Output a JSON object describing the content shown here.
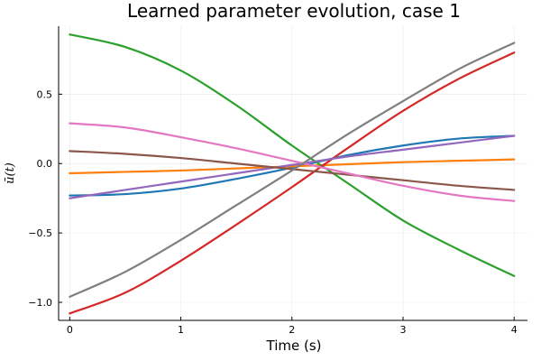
{
  "chart_data": {
    "type": "line",
    "title": "Learned parameter evolution, case 1",
    "xlabel": "Time (s)",
    "ylabel": "ū(t)",
    "xlim": [
      -0.1,
      4.12
    ],
    "ylim": [
      -1.13,
      0.99
    ],
    "x_ticks": [
      0,
      1,
      2,
      3,
      4
    ],
    "x_tick_labels": [
      "0",
      "1",
      "2",
      "3",
      "4"
    ],
    "y_ticks": [
      -1.0,
      -0.5,
      0.0,
      0.5
    ],
    "y_tick_labels": [
      "−1.0",
      "−0.5",
      "0.0",
      "0.5"
    ],
    "grid": true,
    "legend": "none",
    "x": [
      0,
      0.5,
      1,
      1.5,
      2,
      2.5,
      3,
      3.5,
      4
    ],
    "series": [
      {
        "color": "#1f77b4",
        "values": [
          -0.23,
          -0.22,
          -0.18,
          -0.11,
          -0.03,
          0.06,
          0.13,
          0.18,
          0.2
        ]
      },
      {
        "color": "#ff7f0e",
        "values": [
          -0.07,
          -0.06,
          -0.05,
          -0.035,
          -0.02,
          -0.005,
          0.01,
          0.02,
          0.03
        ]
      },
      {
        "color": "#2ca02c",
        "values": [
          0.93,
          0.84,
          0.67,
          0.42,
          0.13,
          -0.14,
          -0.41,
          -0.62,
          -0.81
        ]
      },
      {
        "color": "#d62728",
        "values": [
          -1.08,
          -0.93,
          -0.7,
          -0.44,
          -0.17,
          0.11,
          0.38,
          0.61,
          0.8
        ]
      },
      {
        "color": "#9467bd",
        "values": [
          -0.25,
          -0.19,
          -0.13,
          -0.07,
          -0.01,
          0.05,
          0.1,
          0.15,
          0.2
        ]
      },
      {
        "color": "#8c564b",
        "values": [
          0.09,
          0.07,
          0.04,
          0.0,
          -0.04,
          -0.08,
          -0.12,
          -0.16,
          -0.19
        ]
      },
      {
        "color": "#e377c2",
        "values": [
          0.29,
          0.26,
          0.19,
          0.11,
          0.02,
          -0.07,
          -0.16,
          -0.23,
          -0.27
        ]
      },
      {
        "color": "#7f7f7f",
        "values": [
          -0.96,
          -0.78,
          -0.55,
          -0.3,
          -0.05,
          0.21,
          0.45,
          0.68,
          0.87
        ]
      }
    ]
  }
}
